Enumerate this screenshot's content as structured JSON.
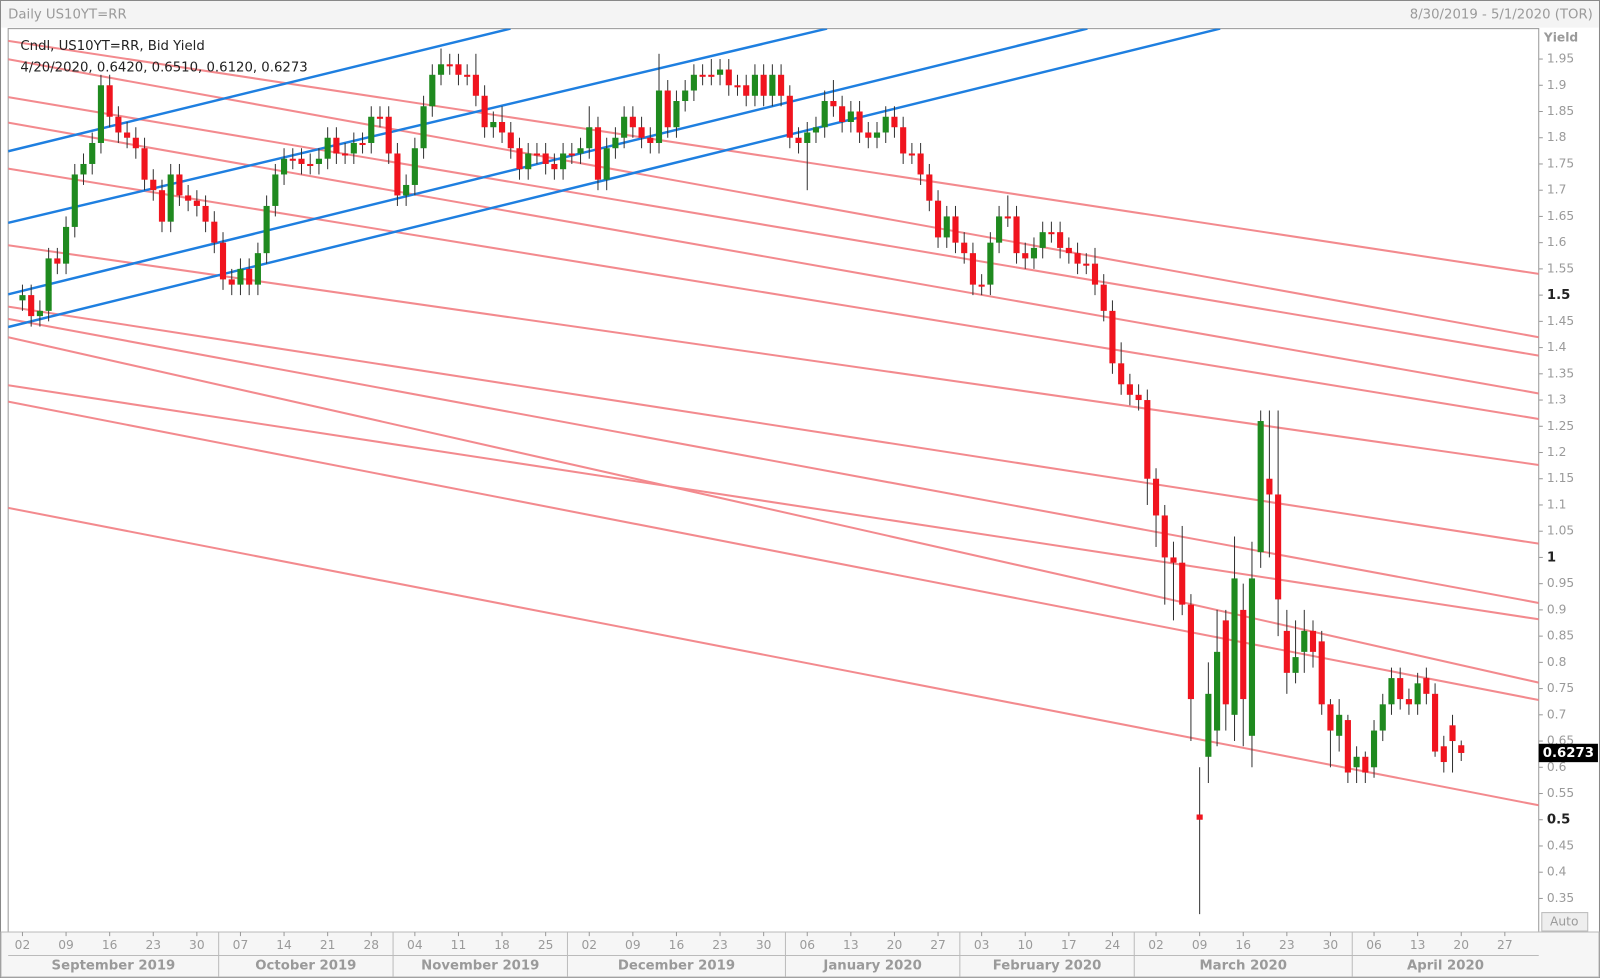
{
  "chart_data": {
    "type": "candlestick",
    "title": "Daily US10YT=RR",
    "date_range": "8/30/2019 - 5/1/2020 (TOR)",
    "legend": [
      "Cndl, US10YT=RR, Bid Yield",
      "4/20/2020, 0.6420, 0.6510, 0.6120, 0.6273"
    ],
    "y_label": "Yield",
    "auto_button": "Auto",
    "months": [
      "September 2019",
      "October 2019",
      "November 2019",
      "December 2019",
      "January 2020",
      "February 2020",
      "March 2020",
      "April 2020"
    ],
    "categories": [
      "02",
      null,
      null,
      null,
      null,
      "09",
      null,
      null,
      null,
      null,
      "16",
      null,
      null,
      null,
      null,
      "23",
      null,
      null,
      null,
      null,
      "30",
      null,
      null,
      null,
      null,
      "07",
      null,
      null,
      null,
      null,
      "14",
      null,
      null,
      null,
      null,
      "21",
      null,
      null,
      null,
      null,
      "28",
      null,
      null,
      null,
      null,
      "04",
      null,
      null,
      null,
      null,
      "11",
      null,
      null,
      null,
      null,
      "18",
      null,
      null,
      null,
      null,
      "25",
      null,
      null,
      null,
      null,
      "02",
      null,
      null,
      null,
      null,
      "09",
      null,
      null,
      null,
      null,
      "16",
      null,
      null,
      null,
      null,
      "23",
      null,
      null,
      null,
      null,
      "30",
      null,
      null,
      null,
      null,
      "06",
      null,
      null,
      null,
      null,
      "13",
      null,
      null,
      null,
      null,
      "20",
      null,
      null,
      null,
      null,
      "27",
      null,
      null,
      null,
      null,
      "03",
      null,
      null,
      null,
      null,
      "10",
      null,
      null,
      null,
      null,
      "17",
      null,
      null,
      null,
      null,
      "24",
      null,
      null,
      null,
      null,
      "02",
      null,
      null,
      null,
      null,
      "09",
      null,
      null,
      null,
      null,
      "16",
      null,
      null,
      null,
      null,
      "23",
      null,
      null,
      null,
      null,
      "30",
      null,
      null,
      null,
      null,
      "06",
      null,
      null,
      null,
      null,
      "13",
      null,
      null,
      null,
      null,
      "20",
      null,
      null,
      null,
      null,
      "27",
      null,
      null,
      null,
      null
    ],
    "open": [
      1.49,
      1.5,
      1.46,
      1.47,
      1.57,
      1.56,
      1.63,
      1.73,
      1.75,
      1.79,
      1.9,
      1.84,
      1.81,
      1.8,
      1.78,
      1.72,
      1.7,
      1.64,
      1.73,
      1.69,
      1.68,
      1.67,
      1.64,
      1.6,
      1.53,
      1.52,
      1.55,
      1.52,
      1.58,
      1.67,
      1.73,
      1.76,
      1.76,
      1.75,
      1.75,
      1.76,
      1.8,
      1.77,
      1.77,
      1.79,
      1.79,
      1.84,
      1.84,
      1.77,
      1.69,
      1.71,
      1.78,
      1.86,
      1.92,
      1.94,
      1.94,
      1.92,
      1.92,
      1.88,
      1.82,
      1.83,
      1.81,
      1.78,
      1.74,
      1.77,
      1.77,
      1.75,
      1.74,
      1.77,
      1.77,
      1.78,
      1.82,
      1.72,
      1.78,
      1.8,
      1.84,
      1.82,
      1.8,
      1.79,
      1.89,
      1.82,
      1.87,
      1.89,
      1.92,
      1.92,
      1.92,
      1.93,
      1.9,
      1.9,
      1.88,
      1.92,
      1.88,
      1.92,
      1.88,
      1.8,
      1.79,
      1.81,
      1.82,
      1.87,
      1.86,
      1.83,
      1.85,
      1.81,
      1.8,
      1.81,
      1.84,
      1.82,
      1.77,
      1.77,
      1.73,
      1.68,
      1.61,
      1.65,
      1.6,
      1.58,
      1.52,
      1.52,
      1.6,
      1.65,
      1.65,
      1.58,
      1.57,
      1.59,
      1.62,
      1.62,
      1.59,
      1.58,
      1.56,
      1.56,
      1.52,
      1.47,
      1.37,
      1.33,
      1.31,
      1.3,
      1.15,
      1.08,
      1.0,
      0.99,
      0.91,
      0.51,
      0.62,
      0.67,
      0.88,
      0.7,
      0.9,
      0.66,
      1.01,
      1.15,
      1.12,
      0.86,
      0.78,
      0.82,
      0.86,
      0.84,
      0.72,
      0.66,
      0.69,
      0.6,
      0.62,
      0.6,
      0.67,
      0.72,
      0.77,
      0.73,
      0.72,
      0.77,
      0.74,
      0.64,
      0.68,
      0.642,
      null,
      null,
      null,
      null,
      null,
      null,
      null,
      null,
      null
    ],
    "high": [
      1.52,
      1.52,
      1.49,
      1.59,
      1.59,
      1.65,
      1.75,
      1.77,
      1.81,
      1.92,
      1.92,
      1.86,
      1.83,
      1.82,
      1.8,
      1.74,
      1.72,
      1.75,
      1.75,
      1.71,
      1.7,
      1.69,
      1.66,
      1.62,
      1.55,
      1.57,
      1.57,
      1.6,
      1.69,
      1.75,
      1.78,
      1.78,
      1.78,
      1.77,
      1.78,
      1.82,
      1.82,
      1.79,
      1.81,
      1.81,
      1.86,
      1.86,
      1.86,
      1.79,
      1.73,
      1.8,
      1.88,
      1.94,
      1.97,
      1.96,
      1.96,
      1.94,
      1.96,
      1.9,
      1.85,
      1.86,
      1.83,
      1.8,
      1.79,
      1.79,
      1.79,
      1.77,
      1.79,
      1.79,
      1.8,
      1.86,
      1.84,
      1.8,
      1.82,
      1.86,
      1.86,
      1.84,
      1.82,
      1.96,
      1.91,
      1.89,
      1.91,
      1.94,
      1.94,
      1.95,
      1.95,
      1.95,
      1.92,
      1.92,
      1.94,
      1.94,
      1.94,
      1.94,
      1.9,
      1.82,
      1.83,
      1.84,
      1.89,
      1.91,
      1.88,
      1.87,
      1.87,
      1.83,
      1.83,
      1.86,
      1.86,
      1.84,
      1.79,
      1.79,
      1.75,
      1.7,
      1.67,
      1.67,
      1.62,
      1.6,
      1.54,
      1.62,
      1.67,
      1.69,
      1.67,
      1.6,
      1.61,
      1.64,
      1.64,
      1.64,
      1.61,
      1.6,
      1.58,
      1.59,
      1.54,
      1.49,
      1.41,
      1.35,
      1.33,
      1.32,
      1.17,
      1.1,
      1.03,
      1.06,
      0.93,
      0.6,
      0.8,
      0.9,
      0.9,
      1.04,
      0.95,
      1.03,
      1.28,
      1.28,
      1.28,
      0.9,
      0.88,
      0.9,
      0.88,
      0.86,
      0.73,
      0.73,
      0.7,
      0.64,
      0.63,
      0.69,
      0.74,
      0.79,
      0.79,
      0.75,
      0.78,
      0.79,
      0.76,
      0.66,
      0.7,
      0.651,
      null,
      null,
      null,
      null,
      null,
      null,
      null,
      null,
      null
    ],
    "low": [
      1.47,
      1.44,
      1.44,
      1.45,
      1.54,
      1.54,
      1.61,
      1.71,
      1.73,
      1.77,
      1.82,
      1.79,
      1.78,
      1.76,
      1.7,
      1.68,
      1.62,
      1.62,
      1.67,
      1.66,
      1.65,
      1.62,
      1.58,
      1.51,
      1.5,
      1.5,
      1.5,
      1.5,
      1.56,
      1.65,
      1.71,
      1.74,
      1.73,
      1.73,
      1.73,
      1.74,
      1.75,
      1.75,
      1.75,
      1.77,
      1.77,
      1.82,
      1.75,
      1.67,
      1.67,
      1.69,
      1.76,
      1.84,
      1.9,
      1.92,
      1.9,
      1.9,
      1.86,
      1.8,
      1.8,
      1.79,
      1.76,
      1.72,
      1.72,
      1.75,
      1.73,
      1.72,
      1.72,
      1.75,
      1.75,
      1.76,
      1.7,
      1.7,
      1.76,
      1.78,
      1.8,
      1.78,
      1.77,
      1.77,
      1.8,
      1.8,
      1.85,
      1.87,
      1.9,
      1.9,
      1.9,
      1.88,
      1.88,
      1.86,
      1.86,
      1.86,
      1.86,
      1.86,
      1.78,
      1.77,
      1.7,
      1.79,
      1.8,
      1.84,
      1.81,
      1.81,
      1.79,
      1.78,
      1.78,
      1.79,
      1.8,
      1.75,
      1.75,
      1.71,
      1.66,
      1.59,
      1.59,
      1.58,
      1.56,
      1.5,
      1.5,
      1.5,
      1.58,
      1.63,
      1.56,
      1.55,
      1.55,
      1.57,
      1.6,
      1.57,
      1.56,
      1.54,
      1.54,
      1.5,
      1.45,
      1.35,
      1.31,
      1.29,
      1.28,
      1.1,
      1.02,
      0.91,
      0.88,
      0.89,
      0.65,
      0.32,
      0.57,
      0.64,
      0.67,
      0.65,
      0.64,
      0.6,
      0.98,
      1.0,
      0.85,
      0.74,
      0.76,
      0.78,
      0.79,
      0.7,
      0.6,
      0.63,
      0.57,
      0.57,
      0.57,
      0.58,
      0.65,
      0.7,
      0.71,
      0.7,
      0.7,
      0.72,
      0.62,
      0.59,
      0.59,
      0.612,
      null,
      null,
      null,
      null,
      null,
      null,
      null,
      null,
      null
    ],
    "close": [
      1.5,
      1.46,
      1.47,
      1.57,
      1.56,
      1.63,
      1.73,
      1.75,
      1.79,
      1.9,
      1.84,
      1.81,
      1.8,
      1.78,
      1.72,
      1.7,
      1.64,
      1.73,
      1.69,
      1.68,
      1.67,
      1.64,
      1.6,
      1.53,
      1.52,
      1.55,
      1.52,
      1.58,
      1.67,
      1.73,
      1.76,
      1.76,
      1.75,
      1.75,
      1.76,
      1.8,
      1.77,
      1.77,
      1.79,
      1.79,
      1.84,
      1.84,
      1.77,
      1.69,
      1.71,
      1.78,
      1.86,
      1.92,
      1.94,
      1.94,
      1.92,
      1.92,
      1.88,
      1.82,
      1.83,
      1.81,
      1.78,
      1.74,
      1.77,
      1.77,
      1.75,
      1.74,
      1.77,
      1.77,
      1.78,
      1.82,
      1.72,
      1.78,
      1.8,
      1.84,
      1.82,
      1.8,
      1.79,
      1.89,
      1.82,
      1.87,
      1.89,
      1.92,
      1.92,
      1.92,
      1.93,
      1.9,
      1.9,
      1.88,
      1.92,
      1.88,
      1.92,
      1.88,
      1.8,
      1.79,
      1.81,
      1.82,
      1.87,
      1.86,
      1.83,
      1.85,
      1.81,
      1.8,
      1.81,
      1.84,
      1.82,
      1.77,
      1.77,
      1.73,
      1.68,
      1.61,
      1.65,
      1.6,
      1.58,
      1.52,
      1.52,
      1.6,
      1.65,
      1.65,
      1.58,
      1.57,
      1.59,
      1.62,
      1.62,
      1.59,
      1.58,
      1.56,
      1.56,
      1.52,
      1.47,
      1.37,
      1.33,
      1.31,
      1.3,
      1.15,
      1.08,
      1.0,
      0.99,
      0.91,
      0.73,
      0.5,
      0.74,
      0.82,
      0.72,
      0.96,
      0.73,
      0.96,
      1.26,
      1.12,
      0.92,
      0.78,
      0.81,
      0.86,
      0.82,
      0.72,
      0.67,
      0.7,
      0.59,
      0.62,
      0.59,
      0.67,
      0.72,
      0.77,
      0.73,
      0.72,
      0.76,
      0.74,
      0.63,
      0.61,
      0.65,
      0.6273,
      null,
      null,
      null,
      null,
      null,
      null,
      null,
      null,
      null
    ],
    "up_color": "#1f8a1f",
    "down_color": "#f0141e",
    "ylim": [
      0.286,
      2.008
    ],
    "yticks": [
      0.35,
      0.4,
      0.45,
      0.5,
      0.55,
      0.6,
      0.65,
      0.7,
      0.75,
      0.8,
      0.85,
      0.9,
      0.95,
      1,
      1.05,
      1.1,
      1.15,
      1.2,
      1.25,
      1.3,
      1.35,
      1.4,
      1.45,
      1.5,
      1.55,
      1.6,
      1.65,
      1.7,
      1.75,
      1.8,
      1.85,
      1.9,
      1.95
    ]
  }
}
